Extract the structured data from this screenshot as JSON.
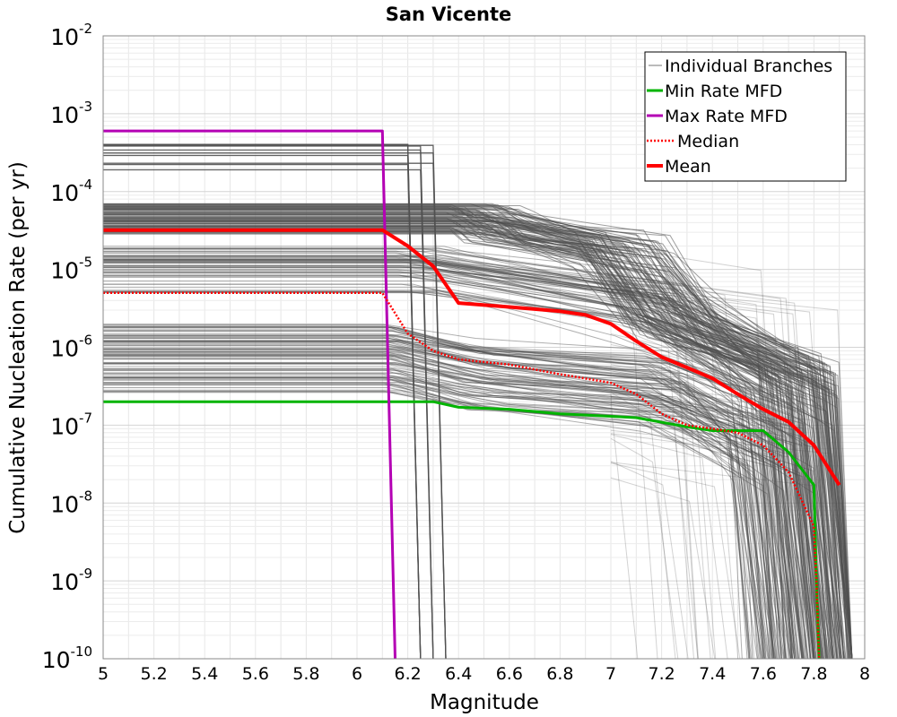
{
  "chart_data": {
    "type": "line",
    "title": "San Vicente",
    "xlabel": "Magnitude",
    "ylabel": "Cumulative Nucleation Rate (per yr)",
    "xlim": [
      5,
      8
    ],
    "ylim": [
      1e-10,
      0.01
    ],
    "yscale": "log",
    "grid": true,
    "legend_position": "top-right",
    "x_ticks": [
      "5",
      "5.2",
      "5.4",
      "5.6",
      "5.8",
      "6",
      "6.2",
      "6.4",
      "6.6",
      "6.8",
      "7",
      "7.2",
      "7.4",
      "7.6",
      "7.8",
      "8"
    ],
    "y_ticks": [
      {
        "base": "10",
        "exp": "-10",
        "value": 1e-10
      },
      {
        "base": "10",
        "exp": "-9",
        "value": 1e-09
      },
      {
        "base": "10",
        "exp": "-8",
        "value": 1e-08
      },
      {
        "base": "10",
        "exp": "-7",
        "value": 1e-07
      },
      {
        "base": "10",
        "exp": "-6",
        "value": 1e-06
      },
      {
        "base": "10",
        "exp": "-5",
        "value": 1e-05
      },
      {
        "base": "10",
        "exp": "-4",
        "value": 0.0001
      },
      {
        "base": "10",
        "exp": "-3",
        "value": 0.001
      },
      {
        "base": "10",
        "exp": "-2",
        "value": 0.01
      }
    ],
    "series": [
      {
        "name": "Min Rate MFD",
        "color": "#00b400",
        "style": "solid",
        "x": [
          5.0,
          6.1,
          6.3,
          6.4,
          6.6,
          6.8,
          7.0,
          7.1,
          7.3,
          7.4,
          7.5,
          7.6,
          7.7,
          7.8,
          7.81,
          7.82
        ],
        "y": [
          2e-07,
          2e-07,
          2e-07,
          1.7e-07,
          1.6e-07,
          1.4e-07,
          1.3e-07,
          1.25e-07,
          9.5e-08,
          8.5e-08,
          8.5e-08,
          8.5e-08,
          4.5e-08,
          1.7e-08,
          1e-09,
          1e-10
        ]
      },
      {
        "name": "Max Rate MFD",
        "color": "#b400b4",
        "style": "solid",
        "x": [
          5.0,
          6.1,
          6.15
        ],
        "y": [
          0.0006,
          0.0006,
          1e-10
        ]
      },
      {
        "name": "Median",
        "color": "#ff0000",
        "style": "dotted",
        "x": [
          5.0,
          6.1,
          6.2,
          6.3,
          6.4,
          6.6,
          6.8,
          7.0,
          7.1,
          7.2,
          7.3,
          7.4,
          7.5,
          7.6,
          7.7,
          7.8,
          7.81,
          7.82
        ],
        "y": [
          5e-06,
          5e-06,
          1.5e-06,
          9e-07,
          7e-07,
          6e-07,
          4.5e-07,
          3.5e-07,
          2.5e-07,
          1.4e-07,
          1e-07,
          9e-08,
          8e-08,
          5.5e-08,
          2.5e-08,
          5e-09,
          1e-09,
          1e-10
        ]
      },
      {
        "name": "Mean",
        "color": "#ff0000",
        "style": "solid",
        "x": [
          5.0,
          6.1,
          6.2,
          6.3,
          6.4,
          6.6,
          6.8,
          6.9,
          7.0,
          7.1,
          7.2,
          7.3,
          7.4,
          7.5,
          7.6,
          7.7,
          7.8,
          7.9
        ],
        "y": [
          3.2e-05,
          3.2e-05,
          2e-05,
          1.1e-05,
          3.7e-06,
          3.3e-06,
          2.9e-06,
          2.6e-06,
          2e-06,
          1.2e-06,
          7.5e-07,
          5.5e-07,
          4e-07,
          2.5e-07,
          1.6e-07,
          1.1e-07,
          5.5e-08,
          1.7e-08
        ]
      }
    ],
    "individual_branches": {
      "name": "Individual Branches",
      "color": "#505050",
      "description_levels": {
        "high": [
          0.00038,
          0.00042,
          0.0003,
          0.00026,
          0.00022
        ],
        "upper": [
          7e-05,
          6e-05,
          5e-05,
          4e-05,
          3e-05
        ],
        "lower": [
          2e-06,
          1.5e-06,
          1e-06,
          7e-07,
          4e-07
        ]
      }
    }
  }
}
